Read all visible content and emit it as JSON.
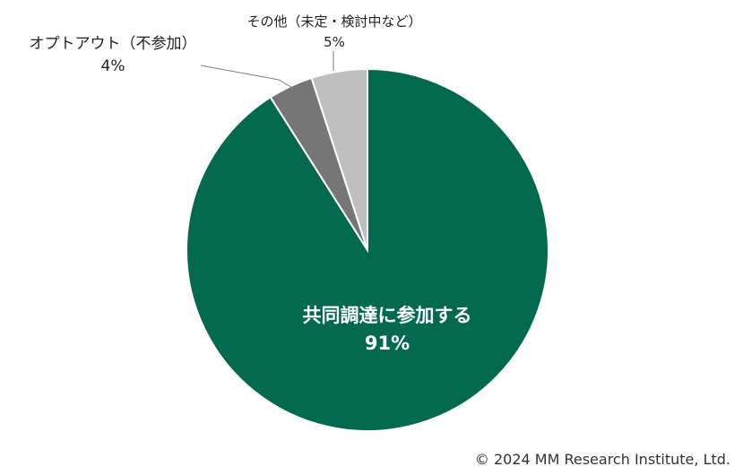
{
  "chart_data": {
    "type": "pie",
    "start": "12 o'clock",
    "direction": "clockwise",
    "slices": [
      {
        "label": "共同調達に参加する",
        "value": 91,
        "value_label": "91%",
        "color": "#036a4f",
        "label_position": "inside"
      },
      {
        "label": "オプトアウト（不参加）",
        "value": 4,
        "value_label": "4%",
        "color": "#767676",
        "label_position": "outside"
      },
      {
        "label": "その他（未定・検討中など）",
        "value": 5,
        "value_label": "5%",
        "color": "#bfbfbf",
        "label_position": "outside"
      }
    ]
  },
  "footer": {
    "copyright": "© 2024 MM Research Institute, Ltd."
  }
}
